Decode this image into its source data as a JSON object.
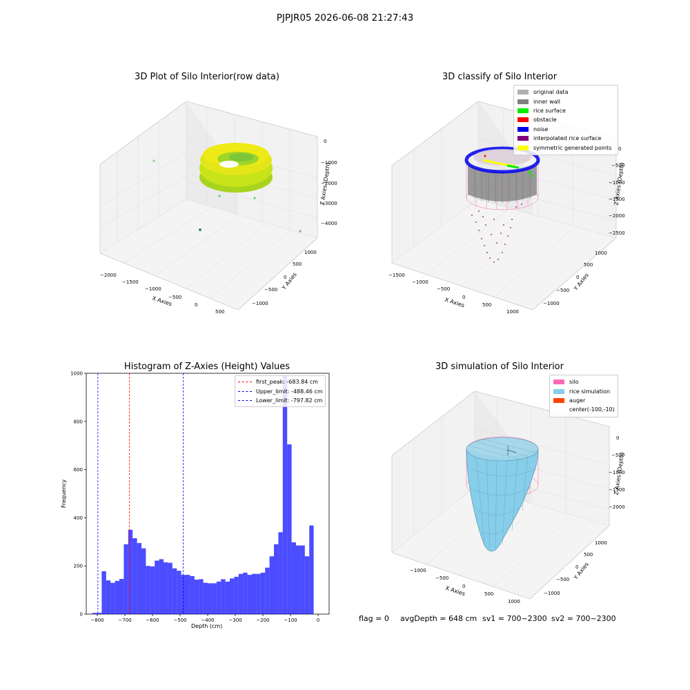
{
  "figure": {
    "suptitle": "PJPJR05 2026-06-08 21:27:43",
    "footer": {
      "flag": "flag = 0",
      "avg_depth": "avgDepth = 648 cm",
      "sv1": "sv1 = 700~2300",
      "sv2": "sv2 = 700~2300"
    }
  },
  "panel_raw": {
    "title": "3D Plot of Silo Interior(row data)",
    "xlabel": "X Axies",
    "ylabel": "Y Axies",
    "zlabel": "Z Axies (Depth)",
    "xticks": [
      "−2000",
      "−1500",
      "−1000",
      "−500",
      "0",
      "500"
    ],
    "yticks": [
      "1000",
      "500",
      "0",
      "−500",
      "−1000"
    ],
    "zticks": [
      "0",
      "−1000",
      "−2000",
      "−3000",
      "−4000"
    ]
  },
  "panel_classify": {
    "title": "3D classify of Silo Interior",
    "xlabel": "X Axies",
    "ylabel": "Y Axies",
    "zlabel": "Z Axies (Depth)",
    "xticks": [
      "−1500",
      "−1000",
      "−500",
      "0",
      "500",
      "1000"
    ],
    "yticks": [
      "1000",
      "500",
      "0",
      "−500",
      "−1000"
    ],
    "zticks": [
      "0",
      "−500",
      "−1000",
      "−1500",
      "−2000",
      "−2500"
    ],
    "legend": [
      {
        "label": "original data",
        "color": "#b0b0b0"
      },
      {
        "label": "inner wall",
        "color": "#808080"
      },
      {
        "label": "rice surface",
        "color": "#00ee00"
      },
      {
        "label": "obstacle",
        "color": "#ff0000"
      },
      {
        "label": "noise",
        "color": "#0000ee"
      },
      {
        "label": "interpolated rice surface",
        "color": "#800080"
      },
      {
        "label": "symmetric generated points",
        "color": "#ffff00"
      }
    ]
  },
  "panel_sim": {
    "title": "3D simulation of Silo Interior",
    "xlabel": "X Axies",
    "ylabel": "Y Axies",
    "zlabel": "Z Axies (Depth)",
    "xticks": [
      "−1000",
      "−500",
      "0",
      "500",
      "1000"
    ],
    "yticks": [
      "1000",
      "500",
      "0",
      "−500",
      "−1000"
    ],
    "zticks": [
      "0",
      "−500",
      "−1000",
      "−1500",
      "−2000"
    ],
    "legend": [
      {
        "label": "silo",
        "color": "#ff69b4"
      },
      {
        "label": "rice simulation",
        "color": "#87ceeb"
      },
      {
        "label": "auger",
        "color": "#ff4500"
      },
      {
        "label": "center(-100,-10)",
        "color": ""
      }
    ]
  },
  "chart_data": {
    "type": "bar",
    "title": "Histogram of Z-Axies (Height) Values",
    "xlabel": "Depth (cm)",
    "ylabel": "Frequency",
    "xlim": [
      -840,
      40
    ],
    "ylim": [
      0,
      1000
    ],
    "xticks": [
      -800,
      -700,
      -600,
      -500,
      -400,
      -300,
      -200,
      -100,
      0
    ],
    "yticks": [
      0,
      200,
      400,
      600,
      800,
      1000
    ],
    "bar_color": "#0000ff",
    "bins": [
      {
        "x0": -818,
        "x1": -800,
        "value": 5
      },
      {
        "x0": -800,
        "x1": -784,
        "value": 5
      },
      {
        "x0": -784,
        "x1": -768,
        "value": 178
      },
      {
        "x0": -768,
        "x1": -752,
        "value": 140
      },
      {
        "x0": -752,
        "x1": -736,
        "value": 130
      },
      {
        "x0": -736,
        "x1": -720,
        "value": 138
      },
      {
        "x0": -720,
        "x1": -704,
        "value": 146
      },
      {
        "x0": -704,
        "x1": -688,
        "value": 290
      },
      {
        "x0": -688,
        "x1": -672,
        "value": 350
      },
      {
        "x0": -672,
        "x1": -656,
        "value": 315
      },
      {
        "x0": -656,
        "x1": -640,
        "value": 295
      },
      {
        "x0": -640,
        "x1": -624,
        "value": 273
      },
      {
        "x0": -624,
        "x1": -608,
        "value": 200
      },
      {
        "x0": -608,
        "x1": -592,
        "value": 198
      },
      {
        "x0": -592,
        "x1": -576,
        "value": 222
      },
      {
        "x0": -576,
        "x1": -560,
        "value": 228
      },
      {
        "x0": -560,
        "x1": -544,
        "value": 215
      },
      {
        "x0": -544,
        "x1": -528,
        "value": 213
      },
      {
        "x0": -528,
        "x1": -512,
        "value": 190
      },
      {
        "x0": -512,
        "x1": -496,
        "value": 180
      },
      {
        "x0": -496,
        "x1": -480,
        "value": 163
      },
      {
        "x0": -480,
        "x1": -464,
        "value": 163
      },
      {
        "x0": -464,
        "x1": -448,
        "value": 158
      },
      {
        "x0": -448,
        "x1": -432,
        "value": 143
      },
      {
        "x0": -432,
        "x1": -416,
        "value": 145
      },
      {
        "x0": -416,
        "x1": -400,
        "value": 130
      },
      {
        "x0": -400,
        "x1": -384,
        "value": 128
      },
      {
        "x0": -384,
        "x1": -368,
        "value": 128
      },
      {
        "x0": -368,
        "x1": -352,
        "value": 135
      },
      {
        "x0": -352,
        "x1": -336,
        "value": 145
      },
      {
        "x0": -336,
        "x1": -320,
        "value": 135
      },
      {
        "x0": -320,
        "x1": -304,
        "value": 148
      },
      {
        "x0": -304,
        "x1": -288,
        "value": 155
      },
      {
        "x0": -288,
        "x1": -272,
        "value": 167
      },
      {
        "x0": -272,
        "x1": -256,
        "value": 172
      },
      {
        "x0": -256,
        "x1": -240,
        "value": 163
      },
      {
        "x0": -240,
        "x1": -224,
        "value": 167
      },
      {
        "x0": -224,
        "x1": -208,
        "value": 167
      },
      {
        "x0": -208,
        "x1": -192,
        "value": 172
      },
      {
        "x0": -192,
        "x1": -176,
        "value": 193
      },
      {
        "x0": -176,
        "x1": -160,
        "value": 240
      },
      {
        "x0": -160,
        "x1": -144,
        "value": 290
      },
      {
        "x0": -144,
        "x1": -128,
        "value": 340
      },
      {
        "x0": -128,
        "x1": -112,
        "value": 990
      },
      {
        "x0": -112,
        "x1": -96,
        "value": 705
      },
      {
        "x0": -96,
        "x1": -80,
        "value": 298
      },
      {
        "x0": -80,
        "x1": -64,
        "value": 285
      },
      {
        "x0": -64,
        "x1": -48,
        "value": 285
      },
      {
        "x0": -48,
        "x1": -32,
        "value": 240
      },
      {
        "x0": -32,
        "x1": -16,
        "value": 368
      }
    ],
    "vlines": [
      {
        "label": "first_peak: -683.84 cm",
        "x": -683.84,
        "color": "#ff0000"
      },
      {
        "label": "Upper_limit: -488.46 cm",
        "x": -488.46,
        "color": "#0000ff"
      },
      {
        "label": "Lower_limit: -797.82 cm",
        "x": -797.82,
        "color": "#0000ff"
      }
    ]
  }
}
